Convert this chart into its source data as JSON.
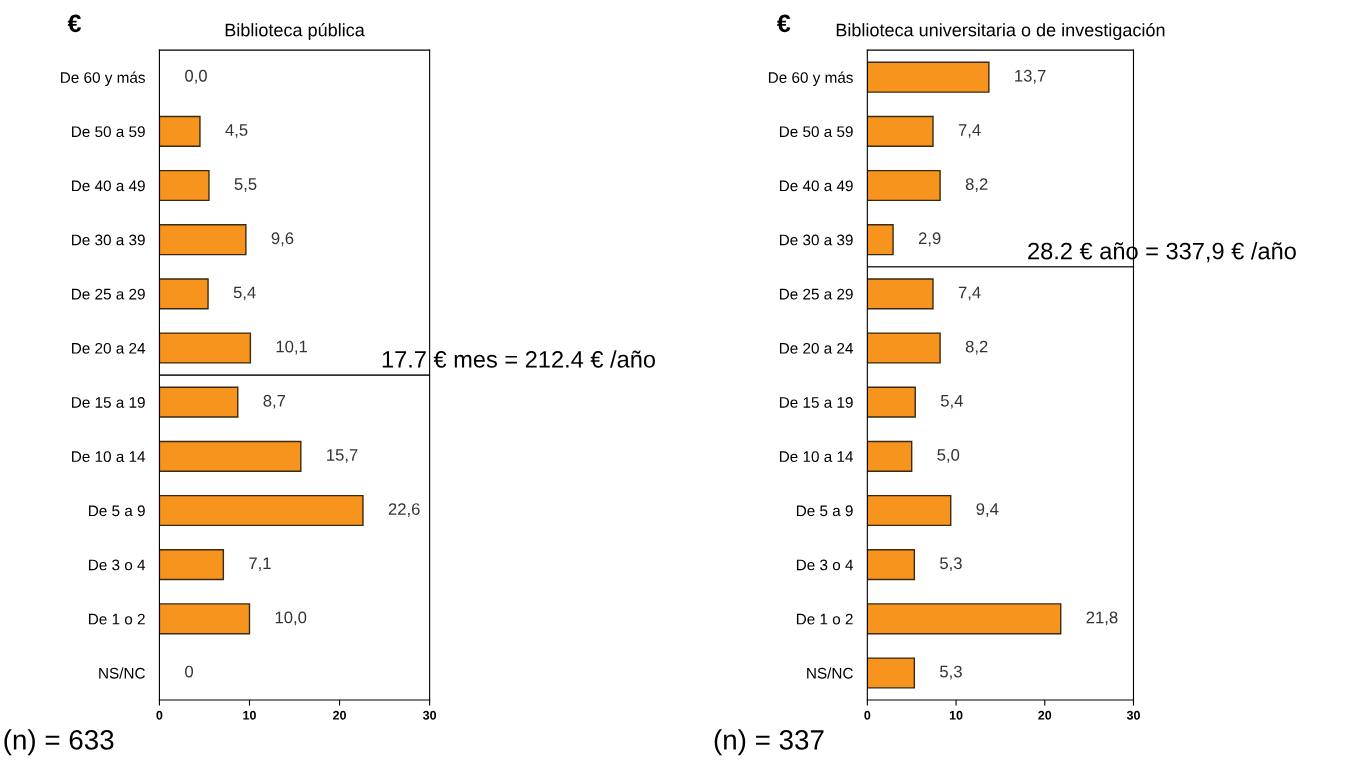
{
  "chart_data": [
    {
      "type": "bar",
      "orientation": "horizontal",
      "title": "Biblioteca pública",
      "ylabel": "€",
      "categories": [
        "De 60 y más",
        "De 50 a 59",
        "De 40 a 49",
        "De 30 a 39",
        "De 25 a 29",
        "De 20 a 24",
        "De 15 a 19",
        "De 10 a 14",
        "De 5 a 9",
        "De 3 o 4",
        "De 1 o 2",
        "NS/NC"
      ],
      "values": [
        0.0,
        4.5,
        5.5,
        9.6,
        5.4,
        10.1,
        8.7,
        15.7,
        22.6,
        7.1,
        10.0,
        0
      ],
      "value_labels": [
        "0,0",
        "4,5",
        "5,5",
        "9,6",
        "5,4",
        "10,1",
        "8,7",
        "15,7",
        "22,6",
        "7,1",
        "10,0",
        "0"
      ],
      "color": "#f7941d",
      "xlim": [
        0,
        30
      ],
      "xticks": [
        0,
        10,
        20,
        30
      ],
      "grid": false,
      "legend": false,
      "annotations": [
        "17.7 € mes = 212.4 € /año",
        "(n) = 633"
      ]
    },
    {
      "type": "bar",
      "orientation": "horizontal",
      "title": "Biblioteca universitaria o de investigación",
      "ylabel": "€",
      "categories": [
        "De 60 y más",
        "De 50 a 59",
        "De 40 a 49",
        "De 30 a 39",
        "De 25 a 29",
        "De 20 a 24",
        "De 15 a 19",
        "De 10 a 14",
        "De 5 a 9",
        "De 3 o 4",
        "De 1 o 2",
        "NS/NC"
      ],
      "values": [
        13.7,
        7.4,
        8.2,
        2.9,
        7.4,
        8.2,
        5.4,
        5.0,
        9.4,
        5.3,
        21.8,
        5.3
      ],
      "value_labels": [
        "13,7",
        "7,4",
        "8,2",
        "2,9",
        "7,4",
        "8,2",
        "5,4",
        "5,0",
        "9,4",
        "5,3",
        "21,8",
        "5,3"
      ],
      "color": "#f7941d",
      "xlim": [
        0,
        30
      ],
      "xticks": [
        0,
        10,
        20,
        30
      ],
      "grid": false,
      "legend": false,
      "annotations": [
        "28.2 € año = 337,9 € /año",
        "(n) = 337"
      ]
    }
  ]
}
